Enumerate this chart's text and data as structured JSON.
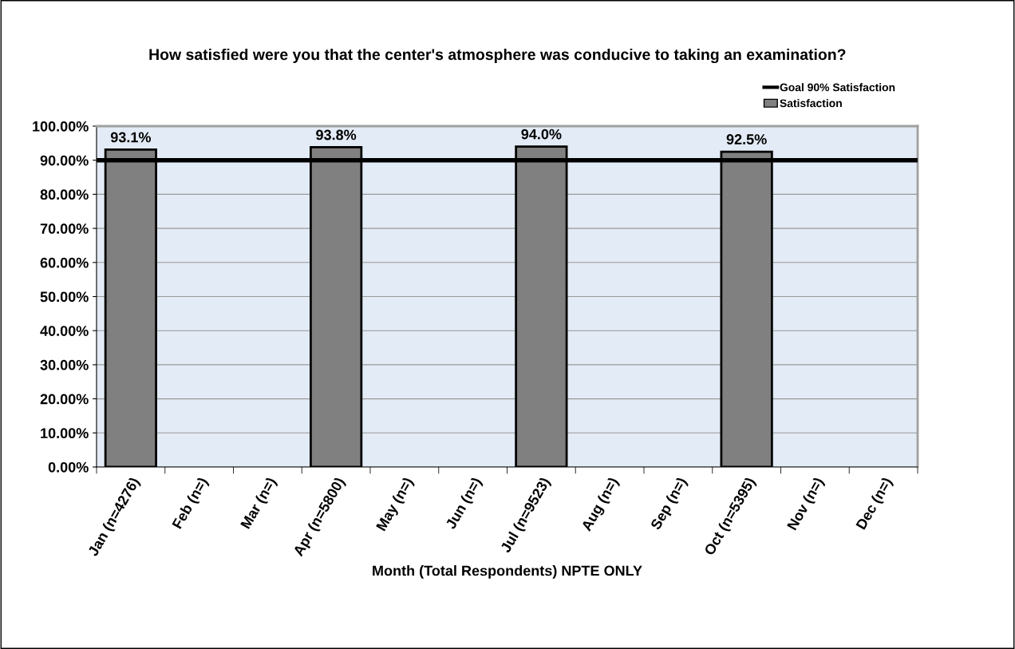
{
  "chart_data": {
    "type": "bar",
    "title": "How satisfied were you that the center's atmosphere was conducive to taking an examination?",
    "xlabel": "Month (Total Respondents) NPTE ONLY",
    "categories": [
      "Jan (n=4276)",
      "Feb (n=)",
      "Mar (n=)",
      "Apr (n=5800)",
      "May (n=)",
      "Jun (n=)",
      "Jul (n=9523)",
      "Aug (n=)",
      "Sep (n=)",
      "Oct (n=5395)",
      "Nov (n=)",
      "Dec (n=)"
    ],
    "series": [
      {
        "name": "Satisfaction",
        "color": "#808080",
        "values": [
          93.1,
          null,
          null,
          93.8,
          null,
          null,
          94.0,
          null,
          null,
          92.5,
          null,
          null
        ],
        "value_labels": [
          "93.1%",
          null,
          null,
          "93.8%",
          null,
          null,
          "94.0%",
          null,
          null,
          "92.5%",
          null,
          null
        ]
      }
    ],
    "ref_lines": [
      {
        "axis": "y",
        "value": 90,
        "label": "Goal 90% Satisfaction",
        "color": "#000000",
        "line_style": "solid"
      }
    ],
    "ylim": [
      0,
      100
    ],
    "yticks": [
      {
        "value": 0,
        "label": "0.00%"
      },
      {
        "value": 10,
        "label": "10.00%"
      },
      {
        "value": 20,
        "label": "20.00%"
      },
      {
        "value": 30,
        "label": "30.00%"
      },
      {
        "value": 40,
        "label": "40.00%"
      },
      {
        "value": 50,
        "label": "50.00%"
      },
      {
        "value": 60,
        "label": "60.00%"
      },
      {
        "value": 70,
        "label": "70.00%"
      },
      {
        "value": 80,
        "label": "80.00%"
      },
      {
        "value": 90,
        "label": "90.00%"
      },
      {
        "value": 100,
        "label": "100.00%"
      }
    ],
    "grid": "y",
    "legend": "top right"
  }
}
